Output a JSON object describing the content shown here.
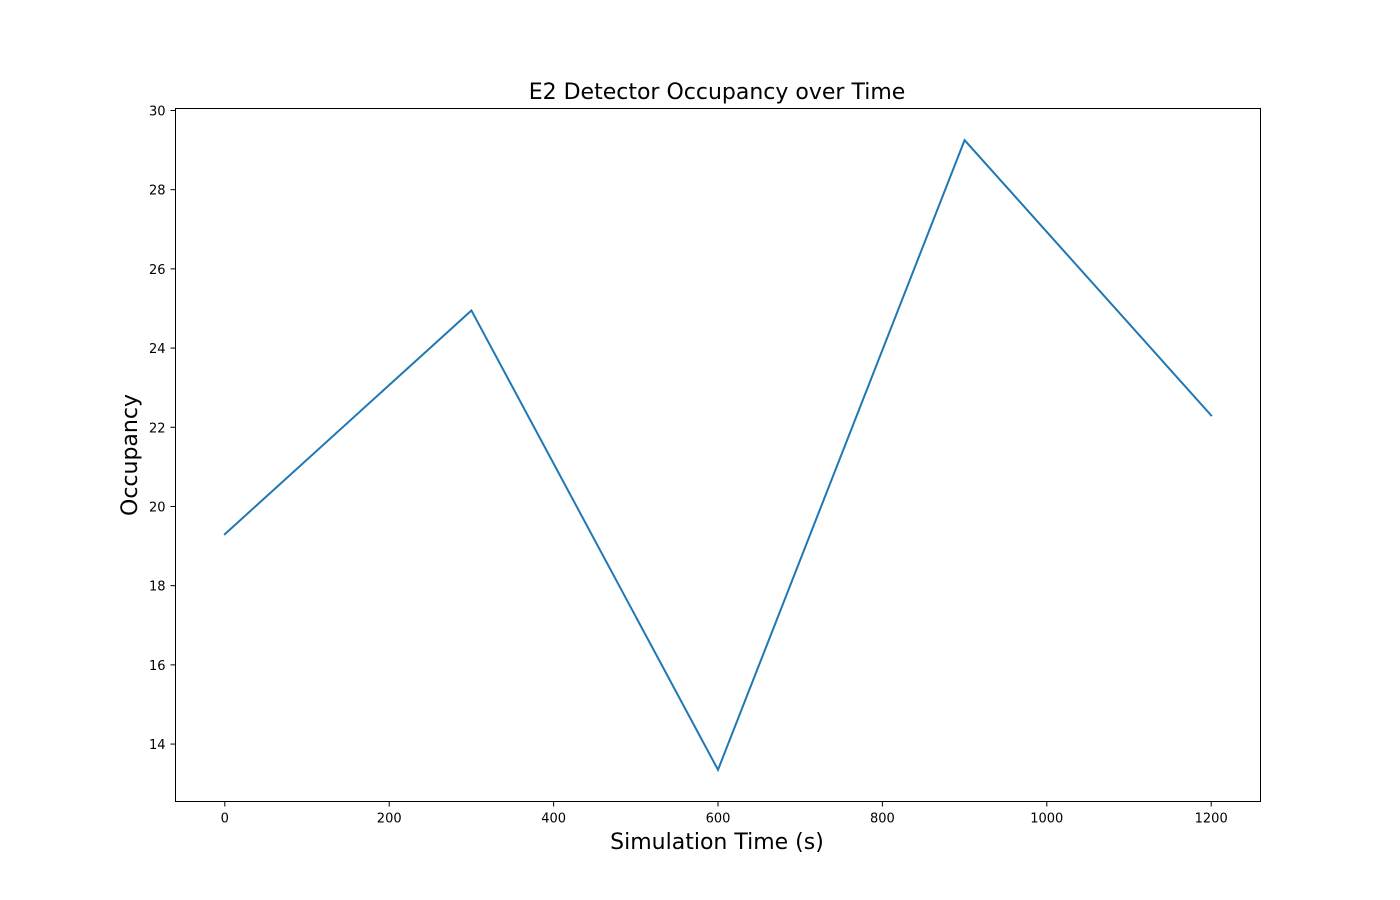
{
  "chart_data": {
    "type": "line",
    "title": "E2 Detector Occupancy over Time",
    "xlabel": "Simulation Time (s)",
    "ylabel": "Occupancy",
    "xlim": [
      -60,
      1260
    ],
    "ylim": [
      12.55,
      30.05
    ],
    "xticks": [
      0,
      200,
      400,
      600,
      800,
      1000,
      1200
    ],
    "xtick_labels": [
      "0",
      "200",
      "400",
      "600",
      "800",
      "1000",
      "1200"
    ],
    "yticks": [
      14,
      16,
      18,
      20,
      22,
      24,
      26,
      28,
      30
    ],
    "ytick_labels": [
      "14",
      "16",
      "18",
      "20",
      "22",
      "24",
      "26",
      "28",
      "30"
    ],
    "grid": false,
    "legend": false,
    "series": [
      {
        "color": "#1f77b4",
        "x": [
          0,
          300,
          600,
          900,
          1200
        ],
        "y": [
          19.3,
          24.95,
          13.35,
          29.25,
          22.3
        ]
      }
    ]
  }
}
